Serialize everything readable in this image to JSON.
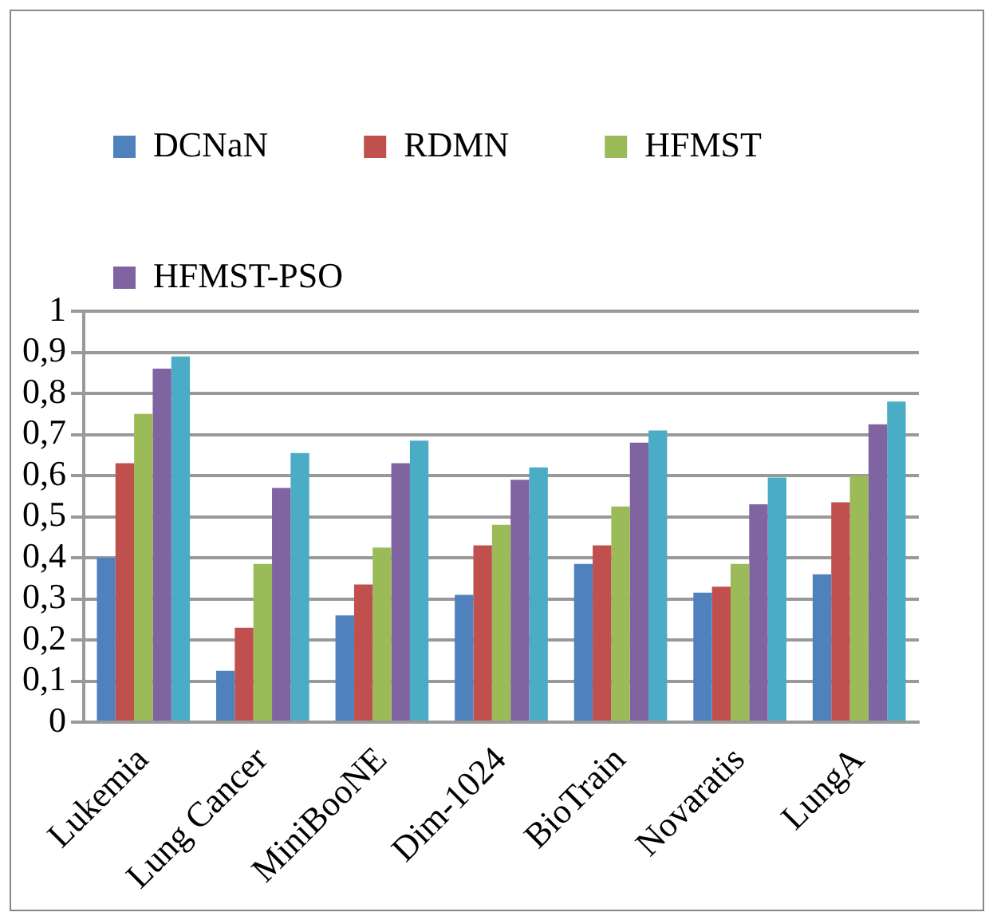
{
  "chart_data": {
    "type": "bar",
    "categories": [
      "Lukemia",
      "Lung Cancer",
      "MiniBooNE",
      "Dim-1024",
      "BioTrain",
      "Novaratis",
      "LungA"
    ],
    "series": [
      {
        "name": "DCNaN",
        "color": "#4f81bd",
        "values": [
          0.4,
          0.125,
          0.26,
          0.31,
          0.385,
          0.315,
          0.36
        ]
      },
      {
        "name": "RDMN",
        "color": "#c0504d",
        "values": [
          0.63,
          0.23,
          0.335,
          0.43,
          0.43,
          0.33,
          0.535
        ]
      },
      {
        "name": "HFMST",
        "color": "#9bbb59",
        "values": [
          0.75,
          0.385,
          0.425,
          0.48,
          0.525,
          0.385,
          0.6
        ]
      },
      {
        "name": "HFMST-PSO",
        "color": "#8064a2",
        "values": [
          0.86,
          0.57,
          0.63,
          0.59,
          0.68,
          0.53,
          0.725
        ]
      },
      {
        "color": "#4bacc6",
        "values": [
          0.89,
          0.655,
          0.685,
          0.62,
          0.71,
          0.595,
          0.78
        ]
      }
    ],
    "ylim": [
      0,
      1
    ],
    "yticks": [
      0,
      {
        "value": 0.1,
        "label": "0,1"
      },
      {
        "value": 0.2,
        "label": "0,2"
      },
      {
        "value": 0.3,
        "label": "0,3"
      },
      {
        "value": 0.4,
        "label": "0,4"
      },
      {
        "value": 0.5,
        "label": "0,5"
      },
      {
        "value": 0.6,
        "label": "0,6"
      },
      {
        "value": 0.7,
        "label": "0,7"
      },
      {
        "value": 0.8,
        "label": "0,8"
      },
      {
        "value": 0.9,
        "label": "0,9"
      },
      1
    ],
    "grid": "y",
    "legend": "top"
  }
}
